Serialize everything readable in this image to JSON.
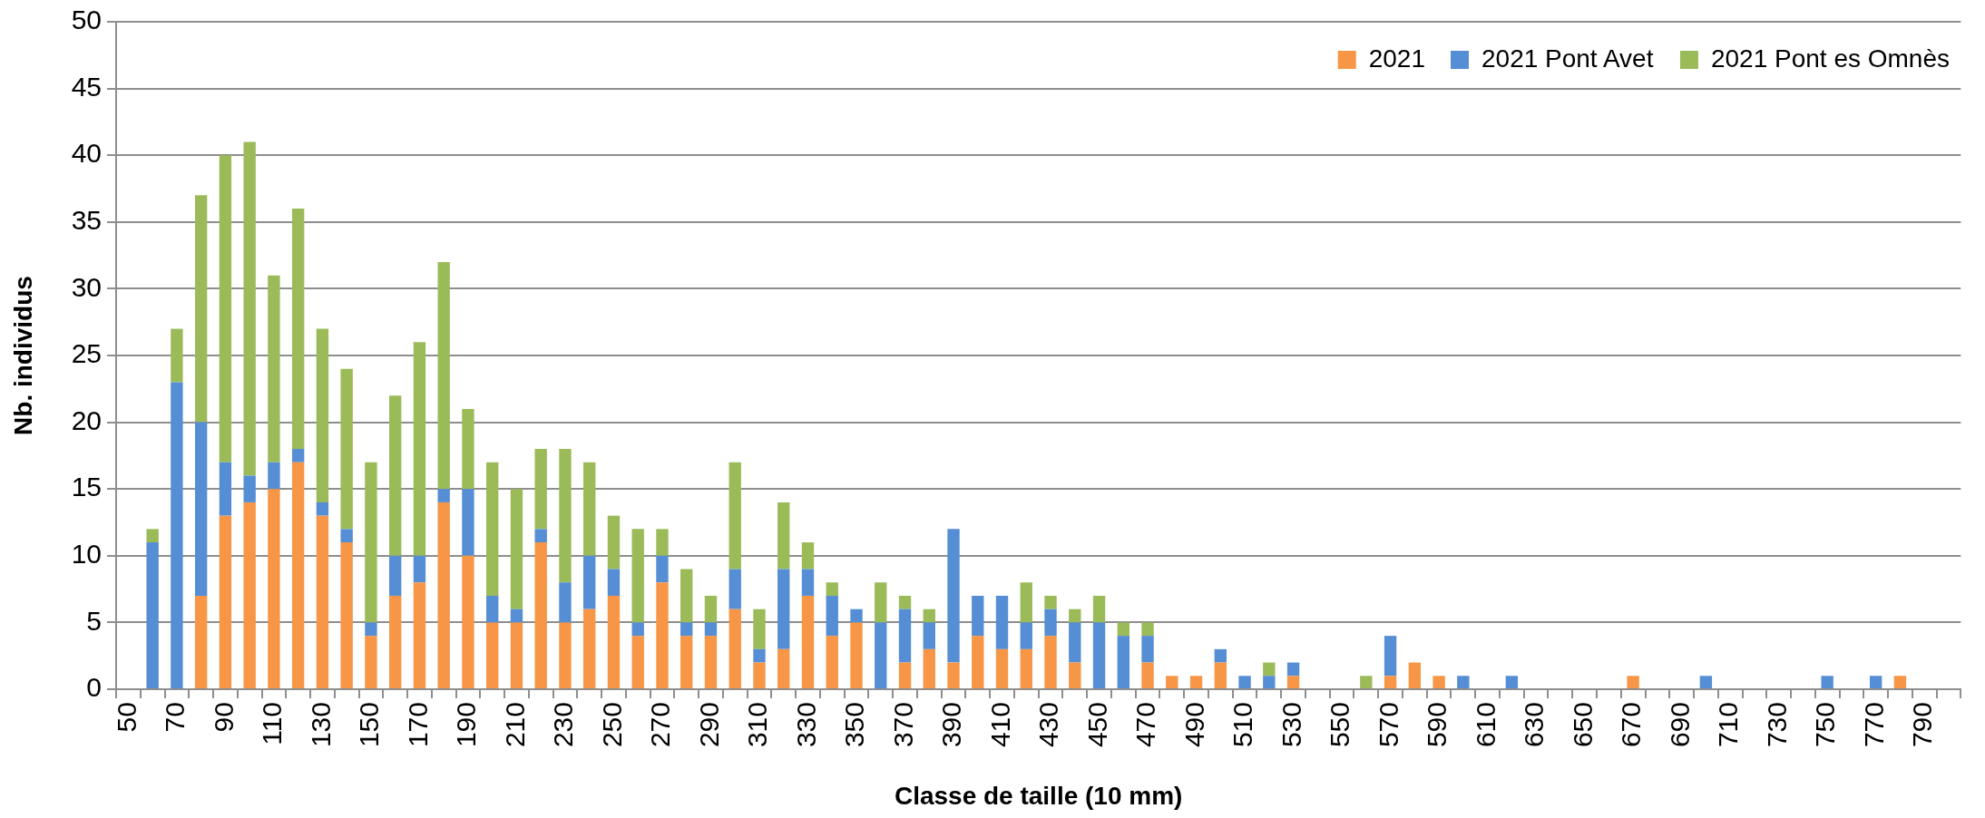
{
  "chart_data": {
    "type": "bar",
    "stacked": true,
    "xlabel": "Classe de taille (10 mm)",
    "ylabel": "Nb. individus",
    "categories": [
      "50",
      null,
      "70",
      null,
      "90",
      null,
      "110",
      null,
      "130",
      null,
      "150",
      null,
      "170",
      null,
      "190",
      null,
      "210",
      null,
      "230",
      null,
      "250",
      null,
      "270",
      null,
      "290",
      null,
      "310",
      null,
      "330",
      null,
      "350",
      null,
      "370",
      null,
      "390",
      null,
      "410",
      null,
      "430",
      null,
      "450",
      null,
      "470",
      null,
      "490",
      null,
      "510",
      null,
      "530",
      null,
      "550",
      null,
      "570",
      null,
      "590",
      null,
      "610",
      null,
      "630",
      null,
      "650",
      null,
      "670",
      null,
      "690",
      null,
      "710",
      null,
      "730",
      null,
      "750",
      null,
      "770",
      null,
      "790",
      null
    ],
    "series": [
      {
        "name": "2021",
        "color": "#f79646",
        "values": [
          0,
          0,
          0,
          7,
          13,
          14,
          15,
          17,
          13,
          11,
          4,
          7,
          8,
          14,
          10,
          5,
          5,
          11,
          5,
          6,
          7,
          4,
          8,
          4,
          4,
          6,
          2,
          3,
          7,
          4,
          5,
          0,
          2,
          3,
          2,
          4,
          3,
          3,
          4,
          2,
          0,
          0,
          2,
          1,
          1,
          2,
          0,
          0,
          1,
          0,
          0,
          0,
          1,
          2,
          1,
          0,
          0,
          0,
          0,
          0,
          0,
          0,
          1,
          0,
          0,
          0,
          0,
          0,
          0,
          0,
          0,
          0,
          0,
          1,
          0,
          0
        ]
      },
      {
        "name": "2021 Pont Avet",
        "color": "#558ed5",
        "values": [
          0,
          11,
          23,
          13,
          4,
          2,
          2,
          1,
          1,
          1,
          1,
          3,
          2,
          1,
          5,
          2,
          1,
          1,
          3,
          4,
          2,
          1,
          2,
          1,
          1,
          3,
          1,
          6,
          2,
          3,
          1,
          5,
          4,
          2,
          10,
          3,
          4,
          2,
          2,
          3,
          5,
          4,
          2,
          0,
          0,
          1,
          1,
          1,
          1,
          0,
          0,
          0,
          3,
          0,
          0,
          1,
          0,
          1,
          0,
          0,
          0,
          0,
          0,
          0,
          0,
          1,
          0,
          0,
          0,
          0,
          1,
          0,
          1,
          0,
          0,
          0
        ]
      },
      {
        "name": "2021 Pont es Omnès",
        "color": "#9bbb59",
        "values": [
          0,
          1,
          4,
          17,
          23,
          25,
          14,
          18,
          13,
          12,
          12,
          12,
          16,
          17,
          6,
          10,
          9,
          6,
          10,
          7,
          4,
          7,
          2,
          4,
          2,
          8,
          3,
          5,
          2,
          1,
          0,
          3,
          1,
          1,
          0,
          0,
          0,
          3,
          1,
          1,
          2,
          1,
          1,
          0,
          0,
          0,
          0,
          1,
          0,
          0,
          0,
          1,
          0,
          0,
          0,
          0,
          0,
          0,
          0,
          0,
          0,
          0,
          0,
          0,
          0,
          0,
          0,
          0,
          0,
          0,
          0,
          0,
          0,
          0,
          0,
          0
        ]
      }
    ],
    "ylim": [
      0,
      50
    ],
    "yticks": [
      0,
      5,
      10,
      15,
      20,
      25,
      30,
      35,
      40,
      45,
      50
    ],
    "grid": "y",
    "legend": "top right"
  }
}
